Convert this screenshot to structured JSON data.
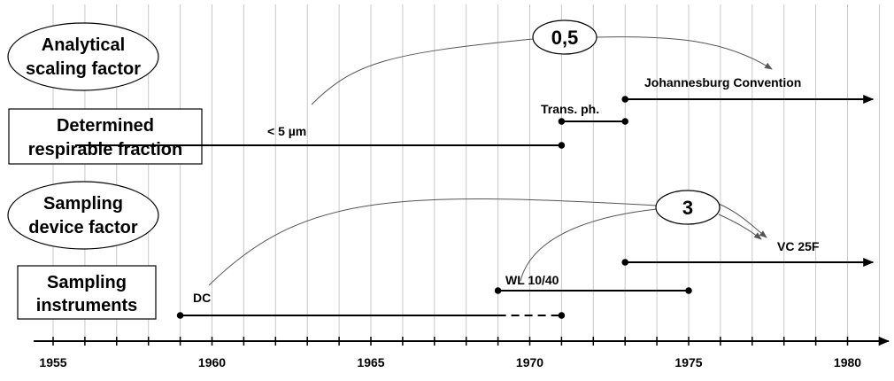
{
  "categories": [
    {
      "id": "analytical",
      "line1": "Analytical",
      "line2": "scaling factor",
      "shape": "ellipse"
    },
    {
      "id": "respirable",
      "line1": "Determined",
      "line2": "respirable fraction",
      "shape": "rect"
    },
    {
      "id": "device",
      "line1": "Sampling",
      "line2": "device factor",
      "shape": "ellipse"
    },
    {
      "id": "instruments",
      "line1": "Sampling",
      "line2": "instruments",
      "shape": "rect"
    }
  ],
  "axis": {
    "start": 1955,
    "end": 1981,
    "tick_labels": [
      "1955",
      "1960",
      "1965",
      "1970",
      "1975",
      "1980"
    ],
    "gridlines_every_year": true
  },
  "badges": [
    {
      "id": "analytical-factor",
      "text": "0,5"
    },
    {
      "id": "device-factor",
      "text": "3"
    }
  ],
  "timelines": [
    {
      "id": "respirable-5um",
      "label": "< 5 µm",
      "start": 1955.7,
      "end": 1971,
      "style": "solid",
      "end_marker": "dot",
      "start_marker": "none"
    },
    {
      "id": "trans-ph",
      "label": "Trans. ph.",
      "start": 1971,
      "end": 1973,
      "style": "solid",
      "start_marker": "dot",
      "end_marker": "dot"
    },
    {
      "id": "johannesburg",
      "label": "Johannesburg Convention",
      "start": 1973,
      "end": 1980.8,
      "style": "solid",
      "start_marker": "dot",
      "end_marker": "arrow"
    },
    {
      "id": "vc25f",
      "label": "VC 25F",
      "start": 1973,
      "end": 1980.8,
      "style": "solid",
      "start_marker": "dot",
      "end_marker": "arrow"
    },
    {
      "id": "wl1040",
      "label": "WL 10/40",
      "start": 1969,
      "end": 1975,
      "style": "solid",
      "start_marker": "dot",
      "end_marker": "dot"
    },
    {
      "id": "dc",
      "label": "DC",
      "start": 1959,
      "end": 1971,
      "style": "solid-then-dashed",
      "dash_from": 1969,
      "start_marker": "dot",
      "end_marker": "dot"
    }
  ]
}
